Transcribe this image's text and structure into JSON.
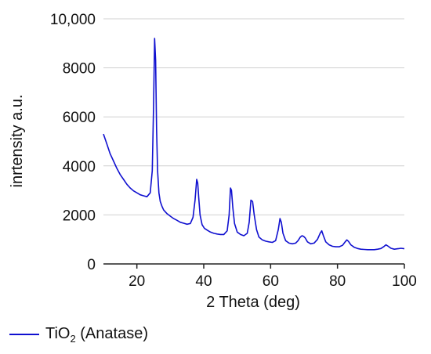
{
  "chart_data": {
    "type": "line",
    "title": "",
    "xlabel": "2 Theta (deg)",
    "ylabel": "inrtensity a.u.",
    "xlim": [
      10,
      100
    ],
    "ylim": [
      0,
      10000
    ],
    "grid": "horizontal",
    "legend": "bottom-left",
    "x_ticks": [
      20,
      40,
      60,
      80,
      100
    ],
    "x_tick_labels": [
      "20",
      "40",
      "60",
      "80",
      "100"
    ],
    "y_ticks": [
      0,
      2000,
      4000,
      6000,
      8000,
      10000
    ],
    "y_tick_labels": [
      "0",
      "2000",
      "4000",
      "6000",
      "8000",
      "10,000"
    ],
    "series": [
      {
        "name_main": "TiO",
        "name_sub": "2",
        "name_suffix": " (Anatase)",
        "color": "#1010d0",
        "x": [
          10,
          11,
          12,
          13,
          14,
          15,
          16,
          17,
          18,
          19,
          20,
          21,
          22,
          23,
          24,
          24.6,
          25,
          25.3,
          25.6,
          25.9,
          26.2,
          26.6,
          27,
          27.5,
          28,
          29,
          30,
          31,
          32,
          33,
          34,
          35,
          36,
          36.8,
          37.4,
          37.9,
          38.2,
          38.5,
          38.9,
          39.5,
          40.2,
          41,
          42,
          43,
          44,
          45,
          46,
          47,
          47.6,
          48.0,
          48.3,
          48.7,
          49.2,
          50,
          51,
          52,
          53,
          53.6,
          54.1,
          54.6,
          55.1,
          55.8,
          56.5,
          57.5,
          58.5,
          59.5,
          60.5,
          61.5,
          62.3,
          62.8,
          63.2,
          63.7,
          64.5,
          65.5,
          66.5,
          67.5,
          68.2,
          68.9,
          69.4,
          69.9,
          70.4,
          71,
          72,
          73,
          74,
          74.8,
          75.3,
          75.8,
          76.5,
          77.5,
          78.5,
          79.5,
          80.5,
          81.5,
          82.3,
          82.8,
          83.3,
          84,
          85,
          86,
          87,
          88,
          89,
          90,
          91,
          92,
          93,
          93.8,
          94.5,
          95.2,
          96,
          97,
          98,
          99,
          100
        ],
        "values": [
          5300,
          4900,
          4500,
          4200,
          3900,
          3650,
          3450,
          3250,
          3100,
          2980,
          2900,
          2820,
          2780,
          2740,
          2900,
          3800,
          6500,
          9200,
          8300,
          5500,
          3800,
          2900,
          2550,
          2350,
          2200,
          2050,
          1950,
          1850,
          1780,
          1700,
          1660,
          1620,
          1650,
          1900,
          2600,
          3450,
          3300,
          2700,
          2000,
          1600,
          1450,
          1380,
          1300,
          1250,
          1220,
          1200,
          1200,
          1350,
          2000,
          3100,
          3000,
          2300,
          1650,
          1300,
          1200,
          1150,
          1250,
          1700,
          2600,
          2550,
          2000,
          1400,
          1100,
          980,
          930,
          900,
          880,
          950,
          1400,
          1850,
          1700,
          1250,
          950,
          850,
          820,
          850,
          950,
          1100,
          1150,
          1120,
          1050,
          900,
          820,
          850,
          1000,
          1250,
          1350,
          1150,
          900,
          780,
          720,
          700,
          700,
          760,
          900,
          980,
          920,
          780,
          680,
          630,
          600,
          590,
          580,
          580,
          580,
          600,
          630,
          700,
          780,
          720,
          640,
          600,
          620,
          640,
          620
        ]
      }
    ]
  }
}
